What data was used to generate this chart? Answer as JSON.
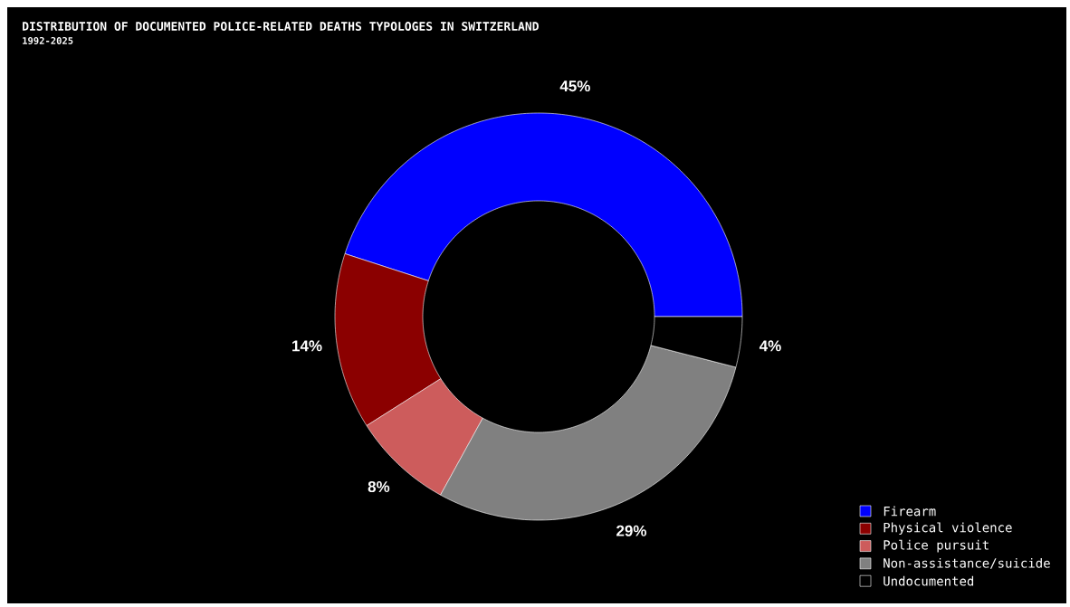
{
  "chart_data": {
    "type": "donut",
    "title": "DISTRIBUTION OF DOCUMENTED POLICE-RELATED DEATHS TYPOLOGES IN SWITZERLAND",
    "subtitle": "1992-2025",
    "categories": [
      "Firearm",
      "Physical violence",
      "Police pursuit",
      "Non-assistance/suicide",
      "Undocumented"
    ],
    "values": [
      45,
      14,
      8,
      29,
      4
    ],
    "colors": [
      "#0000ff",
      "#8b0000",
      "#cd5c5c",
      "#808080",
      "#000000"
    ],
    "value_labels": [
      "45%",
      "14%",
      "8%",
      "29%",
      "4%"
    ],
    "legend": "bottom right"
  }
}
